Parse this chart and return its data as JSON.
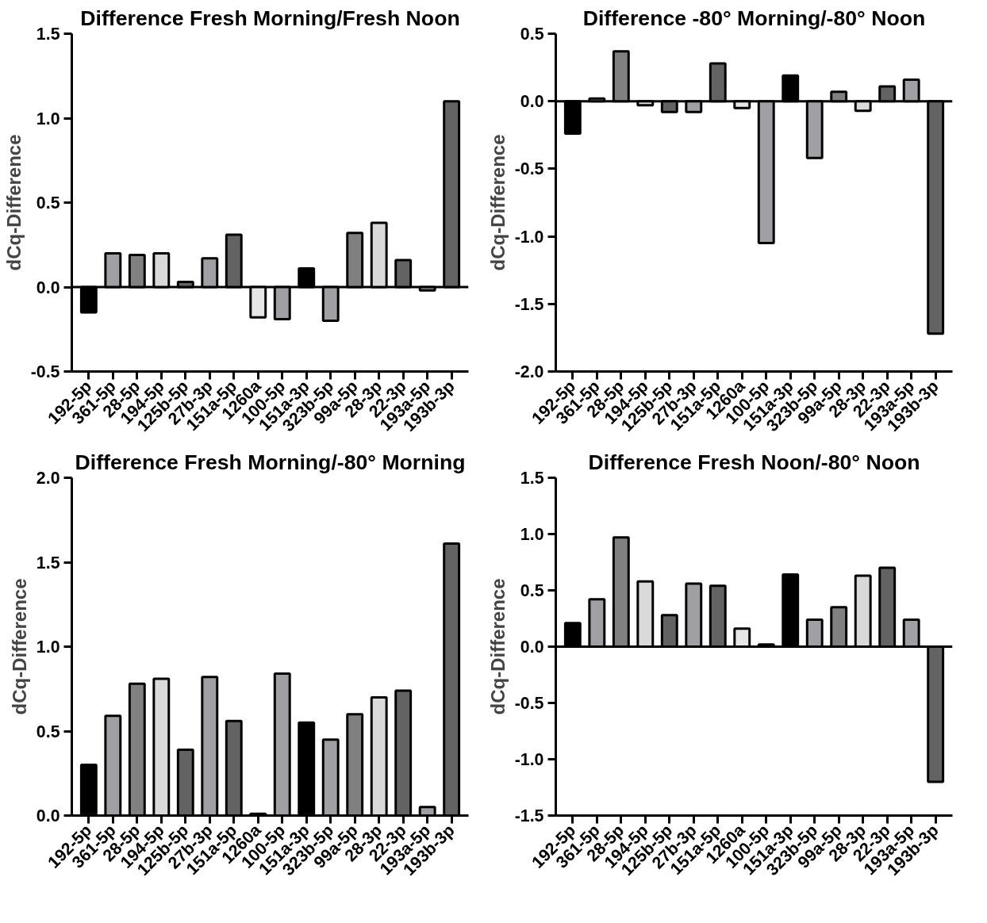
{
  "chart_data": [
    {
      "type": "bar",
      "title": "Difference Fresh Morning/Fresh Noon",
      "ylabel": "dCq-Difference",
      "categories": [
        "192-5p",
        "361-5p",
        "28-5p",
        "194-5p",
        "125b-5p",
        "27b-3p",
        "151a-5p",
        "1260a",
        "100-5p",
        "151a-3p",
        "323b-5p",
        "99a-5p",
        "28-3p",
        "22-3p",
        "193a-5p",
        "193b-3p"
      ],
      "values": [
        -0.15,
        0.2,
        0.19,
        0.2,
        0.03,
        0.17,
        0.31,
        -0.18,
        -0.19,
        0.11,
        -0.2,
        0.32,
        0.38,
        0.16,
        -0.02,
        1.1
      ],
      "colors": [
        "#000000",
        "#a0a0a4",
        "#808080",
        "#d9d9d9",
        "#636363",
        "#a0a0a4",
        "#636363",
        "#e6e6e6",
        "#a0a0a4",
        "#000000",
        "#a0a0a4",
        "#808080",
        "#d9d9d9",
        "#636363",
        "#a0a0a4",
        "#636363"
      ],
      "ylim": [
        -0.5,
        1.5
      ],
      "yticks": [
        -0.5,
        {
          "value": 0,
          "label": "0.0"
        },
        0.5,
        {
          "value": 1,
          "label": "1.0"
        },
        1.5
      ],
      "ref_lines": [
        {
          "axis": "y",
          "value": 0
        }
      ]
    },
    {
      "type": "bar",
      "title": "Difference -80° Morning/-80° Noon",
      "ylabel": "dCq-Difference",
      "categories": [
        "192-5p",
        "361-5p",
        "28-5p",
        "194-5p",
        "125b-5p",
        "27b-3p",
        "151a-5p",
        "1260a",
        "100-5p",
        "151a-3p",
        "323b-5p",
        "99a-5p",
        "28-3p",
        "22-3p",
        "193a-5p",
        "193b-3p"
      ],
      "values": [
        -0.24,
        0.02,
        0.37,
        -0.03,
        -0.08,
        -0.08,
        0.28,
        -0.05,
        -1.05,
        0.19,
        -0.42,
        0.07,
        -0.07,
        0.11,
        0.16,
        -1.72
      ],
      "colors": [
        "#000000",
        "#a0a0a4",
        "#808080",
        "#d9d9d9",
        "#636363",
        "#a0a0a4",
        "#636363",
        "#e6e6e6",
        "#a0a0a4",
        "#000000",
        "#a0a0a4",
        "#808080",
        "#d9d9d9",
        "#636363",
        "#a0a0a4",
        "#636363"
      ],
      "ylim": [
        -2.0,
        0.5
      ],
      "yticks": [
        {
          "value": -2,
          "label": "-2.0"
        },
        -1.5,
        {
          "value": -1,
          "label": "-1.0"
        },
        -0.5,
        {
          "value": 0,
          "label": "0.0"
        },
        0.5
      ],
      "ref_lines": [
        {
          "axis": "y",
          "value": 0
        }
      ]
    },
    {
      "type": "bar",
      "title": "Difference Fresh Morning/-80° Morning",
      "ylabel": "dCq-Difference",
      "categories": [
        "192-5p",
        "361-5p",
        "28-5p",
        "194-5p",
        "125b-5p",
        "27b-3p",
        "151a-5p",
        "1260a",
        "100-5p",
        "151a-3p",
        "323b-5p",
        "99a-5p",
        "28-3p",
        "22-3p",
        "193a-5p",
        "193b-3p"
      ],
      "values": [
        0.3,
        0.59,
        0.78,
        0.81,
        0.39,
        0.82,
        0.56,
        0.01,
        0.84,
        0.55,
        0.45,
        0.6,
        0.7,
        0.74,
        0.05,
        1.61
      ],
      "colors": [
        "#000000",
        "#a0a0a4",
        "#808080",
        "#d9d9d9",
        "#636363",
        "#a0a0a4",
        "#636363",
        "#e6e6e6",
        "#a0a0a4",
        "#000000",
        "#a0a0a4",
        "#808080",
        "#d9d9d9",
        "#636363",
        "#a0a0a4",
        "#636363"
      ],
      "ylim": [
        0.0,
        2.0
      ],
      "yticks": [
        {
          "value": 0,
          "label": "0.0"
        },
        0.5,
        {
          "value": 1,
          "label": "1.0"
        },
        1.5,
        {
          "value": 2,
          "label": "2.0"
        }
      ]
    },
    {
      "type": "bar",
      "title": "Difference Fresh Noon/-80° Noon",
      "ylabel": "dCq-Difference",
      "categories": [
        "192-5p",
        "361-5p",
        "28-5p",
        "194-5p",
        "125b-5p",
        "27b-3p",
        "151a-5p",
        "1260a",
        "100-5p",
        "151a-3p",
        "323b-5p",
        "99a-5p",
        "28-3p",
        "22-3p",
        "193a-5p",
        "193b-3p"
      ],
      "values": [
        0.21,
        0.42,
        0.97,
        0.58,
        0.28,
        0.56,
        0.54,
        0.16,
        0.02,
        0.64,
        0.24,
        0.35,
        0.63,
        0.7,
        0.24,
        -1.2
      ],
      "colors": [
        "#000000",
        "#a0a0a4",
        "#808080",
        "#d9d9d9",
        "#636363",
        "#a0a0a4",
        "#636363",
        "#e6e6e6",
        "#a0a0a4",
        "#000000",
        "#a0a0a4",
        "#808080",
        "#d9d9d9",
        "#636363",
        "#a0a0a4",
        "#636363"
      ],
      "ylim": [
        -1.5,
        1.5
      ],
      "yticks": [
        -1.5,
        {
          "value": -1,
          "label": "-1.0"
        },
        -0.5,
        {
          "value": 0,
          "label": "0.0"
        },
        0.5,
        {
          "value": 1,
          "label": "1.0"
        },
        1.5
      ],
      "ref_lines": [
        {
          "axis": "y",
          "value": 0
        }
      ]
    }
  ]
}
